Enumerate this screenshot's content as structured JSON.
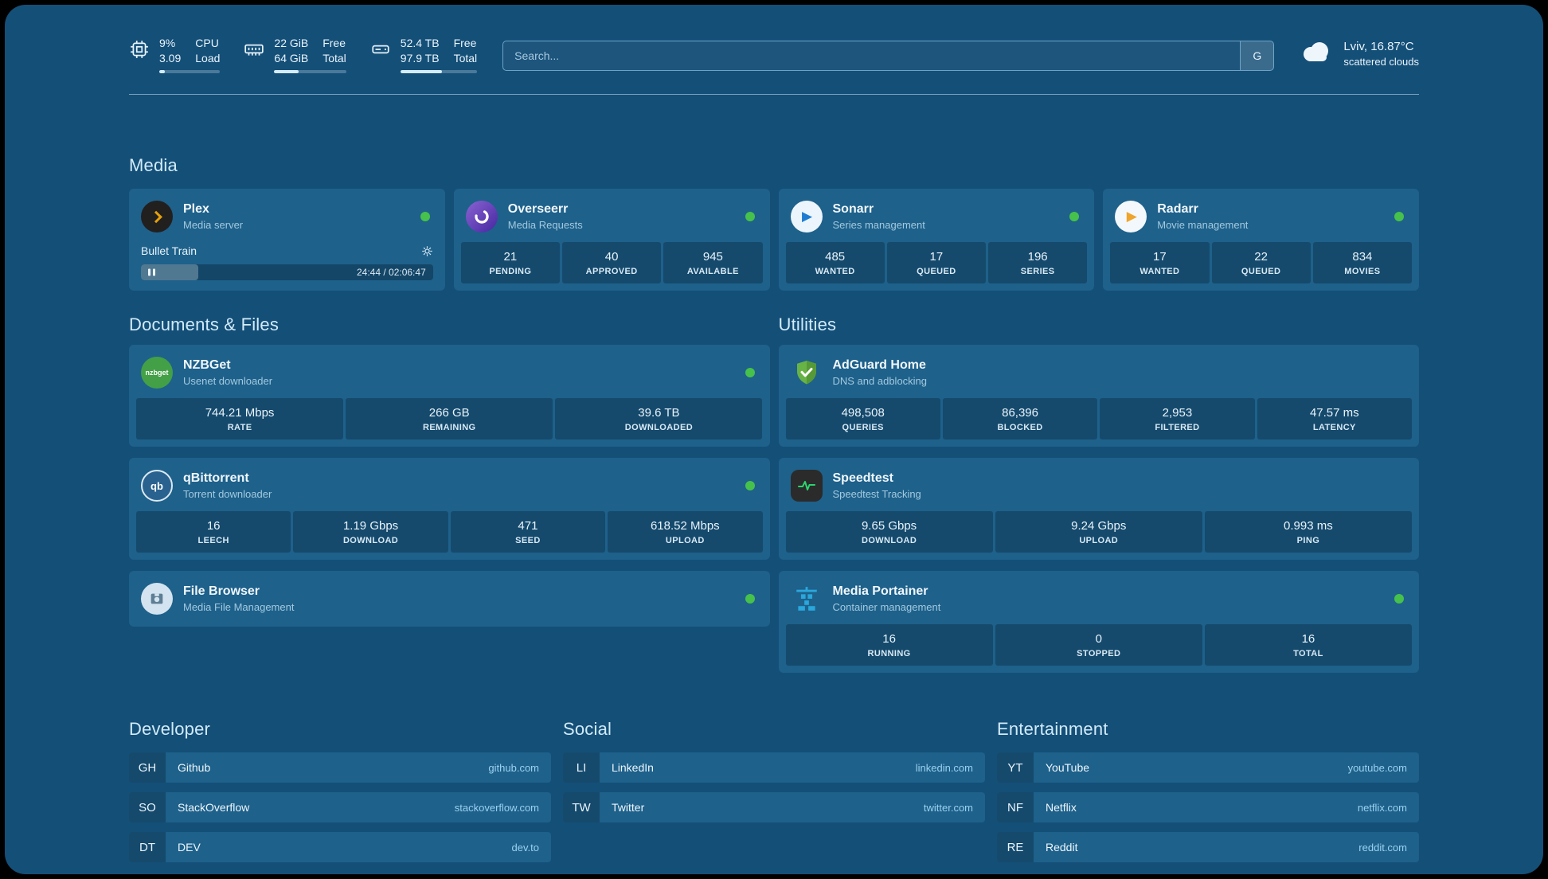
{
  "header": {
    "metrics": [
      {
        "name": "cpu",
        "values": [
          "9%",
          "3.09"
        ],
        "labels": [
          "CPU",
          "Load"
        ],
        "progress": 9
      },
      {
        "name": "ram",
        "values": [
          "22 GiB",
          "64 GiB"
        ],
        "labels": [
          "Free",
          "Total"
        ],
        "progress": 34
      },
      {
        "name": "disk",
        "values": [
          "52.4 TB",
          "97.9 TB"
        ],
        "labels": [
          "Free",
          "Total"
        ],
        "progress": 54
      }
    ],
    "search": {
      "placeholder": "Search...",
      "engine_button": "G"
    },
    "weather": {
      "location": "Lviv, 16.87°C",
      "condition": "scattered clouds"
    }
  },
  "sections": {
    "media": {
      "title": "Media",
      "apps": [
        {
          "name": "Plex",
          "subtitle": "Media server",
          "player": {
            "title": "Bullet Train",
            "time": "24:44 / 02:06:47",
            "progress": 19.5
          }
        },
        {
          "name": "Overseerr",
          "subtitle": "Media Requests",
          "stats": [
            {
              "value": "21",
              "label": "PENDING"
            },
            {
              "value": "40",
              "label": "APPROVED"
            },
            {
              "value": "945",
              "label": "AVAILABLE"
            }
          ]
        },
        {
          "name": "Sonarr",
          "subtitle": "Series management",
          "stats": [
            {
              "value": "485",
              "label": "WANTED"
            },
            {
              "value": "17",
              "label": "QUEUED"
            },
            {
              "value": "196",
              "label": "SERIES"
            }
          ]
        },
        {
          "name": "Radarr",
          "subtitle": "Movie management",
          "stats": [
            {
              "value": "17",
              "label": "WANTED"
            },
            {
              "value": "22",
              "label": "QUEUED"
            },
            {
              "value": "834",
              "label": "MOVIES"
            }
          ]
        }
      ]
    },
    "documents": {
      "title": "Documents & Files",
      "apps": [
        {
          "name": "NZBGet",
          "subtitle": "Usenet downloader",
          "icon_text": "nzbget",
          "stats": [
            {
              "value": "744.21 Mbps",
              "label": "RATE"
            },
            {
              "value": "266 GB",
              "label": "REMAINING"
            },
            {
              "value": "39.6 TB",
              "label": "DOWNLOADED"
            }
          ]
        },
        {
          "name": "qBittorrent",
          "subtitle": "Torrent downloader",
          "icon_text": "qb",
          "stats": [
            {
              "value": "16",
              "label": "LEECH"
            },
            {
              "value": "1.19 Gbps",
              "label": "DOWNLOAD"
            },
            {
              "value": "471",
              "label": "SEED"
            },
            {
              "value": "618.52 Mbps",
              "label": "UPLOAD"
            }
          ]
        },
        {
          "name": "File Browser",
          "subtitle": "Media File Management"
        }
      ]
    },
    "utilities": {
      "title": "Utilities",
      "apps": [
        {
          "name": "AdGuard Home",
          "subtitle": "DNS and adblocking",
          "stats": [
            {
              "value": "498,508",
              "label": "QUERIES"
            },
            {
              "value": "86,396",
              "label": "BLOCKED"
            },
            {
              "value": "2,953",
              "label": "FILTERED"
            },
            {
              "value": "47.57 ms",
              "label": "LATENCY"
            }
          ]
        },
        {
          "name": "Speedtest",
          "subtitle": "Speedtest Tracking",
          "stats": [
            {
              "value": "9.65 Gbps",
              "label": "DOWNLOAD"
            },
            {
              "value": "9.24 Gbps",
              "label": "UPLOAD"
            },
            {
              "value": "0.993 ms",
              "label": "PING"
            }
          ]
        },
        {
          "name": "Media Portainer",
          "subtitle": "Container management",
          "stats": [
            {
              "value": "16",
              "label": "RUNNING"
            },
            {
              "value": "0",
              "label": "STOPPED"
            },
            {
              "value": "16",
              "label": "TOTAL"
            }
          ]
        }
      ]
    },
    "bookmarks": [
      {
        "title": "Developer",
        "links": [
          {
            "abbr": "GH",
            "label": "Github",
            "url": "github.com"
          },
          {
            "abbr": "SO",
            "label": "StackOverflow",
            "url": "stackoverflow.com"
          },
          {
            "abbr": "DT",
            "label": "DEV",
            "url": "dev.to"
          }
        ]
      },
      {
        "title": "Social",
        "links": [
          {
            "abbr": "LI",
            "label": "LinkedIn",
            "url": "linkedin.com"
          },
          {
            "abbr": "TW",
            "label": "Twitter",
            "url": "twitter.com"
          }
        ]
      },
      {
        "title": "Entertainment",
        "links": [
          {
            "abbr": "YT",
            "label": "YouTube",
            "url": "youtube.com"
          },
          {
            "abbr": "NF",
            "label": "Netflix",
            "url": "netflix.com"
          },
          {
            "abbr": "RE",
            "label": "Reddit",
            "url": "reddit.com"
          }
        ]
      }
    ]
  },
  "colors": {
    "background": "#144f78",
    "card": "#1e618b",
    "status_online": "#46c14b",
    "url_accent": "#9bd1f0"
  }
}
